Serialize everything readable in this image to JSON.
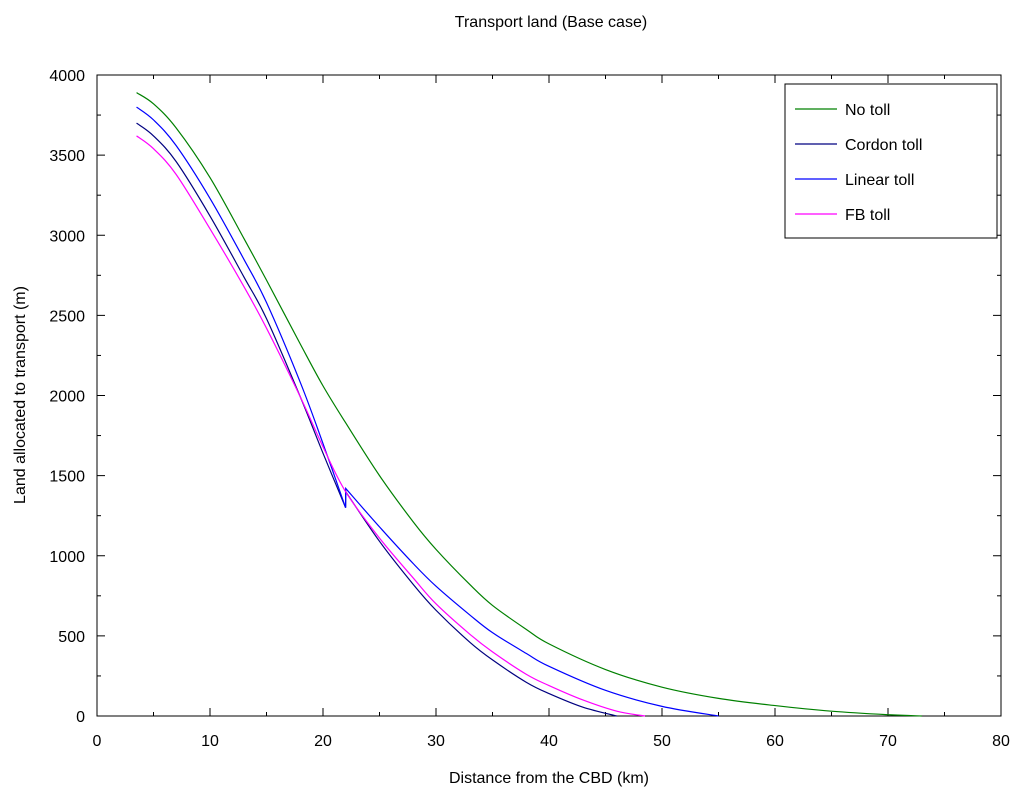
{
  "chart_data": {
    "type": "line",
    "title": "Transport land (Base case)",
    "xlabel": "Distance  from the CBD (km)",
    "ylabel": "Land allocated to transport (m)",
    "xlim": [
      0,
      80
    ],
    "ylim": [
      0,
      4000
    ],
    "x_ticks": [
      0,
      10,
      20,
      30,
      40,
      50,
      60,
      70,
      80
    ],
    "y_ticks": [
      0,
      500,
      1000,
      1500,
      2000,
      2500,
      3000,
      3500,
      4000
    ],
    "grid": false,
    "legend_position": "top-right",
    "series": [
      {
        "name": "No toll",
        "color": "#008000",
        "points": [
          [
            3.5,
            3890
          ],
          [
            5,
            3820
          ],
          [
            7,
            3670
          ],
          [
            10,
            3360
          ],
          [
            13,
            2980
          ],
          [
            15,
            2720
          ],
          [
            18,
            2320
          ],
          [
            20,
            2060
          ],
          [
            22,
            1830
          ],
          [
            25,
            1500
          ],
          [
            28,
            1210
          ],
          [
            30,
            1040
          ],
          [
            33,
            820
          ],
          [
            35,
            690
          ],
          [
            38,
            540
          ],
          [
            40,
            450
          ],
          [
            45,
            290
          ],
          [
            50,
            180
          ],
          [
            55,
            110
          ],
          [
            60,
            65
          ],
          [
            65,
            30
          ],
          [
            70,
            8
          ],
          [
            73,
            0
          ]
        ]
      },
      {
        "name": "Cordon toll",
        "color": "#000080",
        "points": [
          [
            3.5,
            3700
          ],
          [
            5,
            3620
          ],
          [
            7,
            3460
          ],
          [
            10,
            3120
          ],
          [
            13,
            2740
          ],
          [
            15,
            2480
          ],
          [
            18,
            1990
          ],
          [
            20,
            1640
          ],
          [
            22,
            1300
          ],
          [
            22.01,
            1400
          ],
          [
            25,
            1090
          ],
          [
            28,
            820
          ],
          [
            30,
            660
          ],
          [
            33,
            460
          ],
          [
            35,
            350
          ],
          [
            38,
            210
          ],
          [
            40,
            140
          ],
          [
            43,
            55
          ],
          [
            46,
            0
          ]
        ]
      },
      {
        "name": "Linear toll",
        "color": "#0000FF",
        "points": [
          [
            3.5,
            3800
          ],
          [
            5,
            3720
          ],
          [
            7,
            3560
          ],
          [
            10,
            3230
          ],
          [
            13,
            2850
          ],
          [
            15,
            2580
          ],
          [
            18,
            2080
          ],
          [
            20,
            1700
          ],
          [
            22,
            1300
          ],
          [
            22.01,
            1420
          ],
          [
            25,
            1180
          ],
          [
            28,
            950
          ],
          [
            30,
            810
          ],
          [
            33,
            630
          ],
          [
            35,
            520
          ],
          [
            38,
            390
          ],
          [
            40,
            310
          ],
          [
            45,
            160
          ],
          [
            50,
            60
          ],
          [
            55,
            0
          ]
        ]
      },
      {
        "name": "FB toll",
        "color": "#FF00FF",
        "points": [
          [
            3.5,
            3620
          ],
          [
            5,
            3540
          ],
          [
            7,
            3380
          ],
          [
            10,
            3040
          ],
          [
            13,
            2680
          ],
          [
            15,
            2420
          ],
          [
            18,
            1990
          ],
          [
            20,
            1680
          ],
          [
            22,
            1400
          ],
          [
            25,
            1110
          ],
          [
            28,
            860
          ],
          [
            30,
            700
          ],
          [
            33,
            510
          ],
          [
            35,
            400
          ],
          [
            38,
            260
          ],
          [
            40,
            190
          ],
          [
            43,
            100
          ],
          [
            46,
            30
          ],
          [
            48.5,
            0
          ]
        ]
      }
    ]
  }
}
